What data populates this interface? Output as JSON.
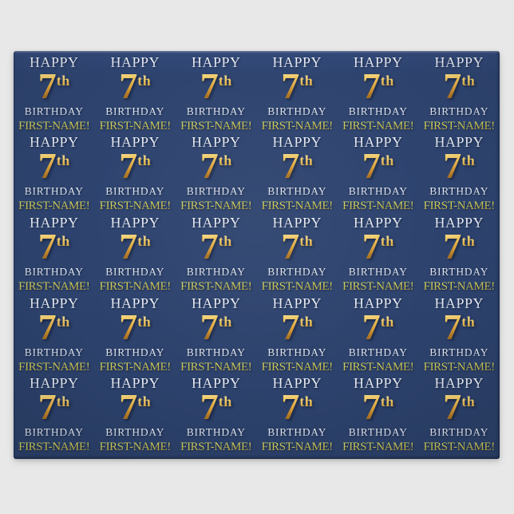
{
  "page": {
    "background_color": "#e8e8e8"
  },
  "paper": {
    "description": "blue faux-gold 7th birthday wrapping paper pattern",
    "background_color": "#2d436e",
    "grid": {
      "columns": 6,
      "rows": 5
    }
  },
  "motif": {
    "line1": "HAPPY",
    "number": "7",
    "ordinal_suffix": "th",
    "line3": "BIRTHDAY",
    "line4": "FIRST-NAME!",
    "colors": {
      "silver_text": "#dfe5f0",
      "gold_number": "#dfa83f",
      "gold_number_highlight": "#f6dd8c",
      "gold_number_shadow": "#8d5f1e",
      "name_text_top": "#dce26b",
      "name_text_bottom": "#9c8030"
    }
  }
}
